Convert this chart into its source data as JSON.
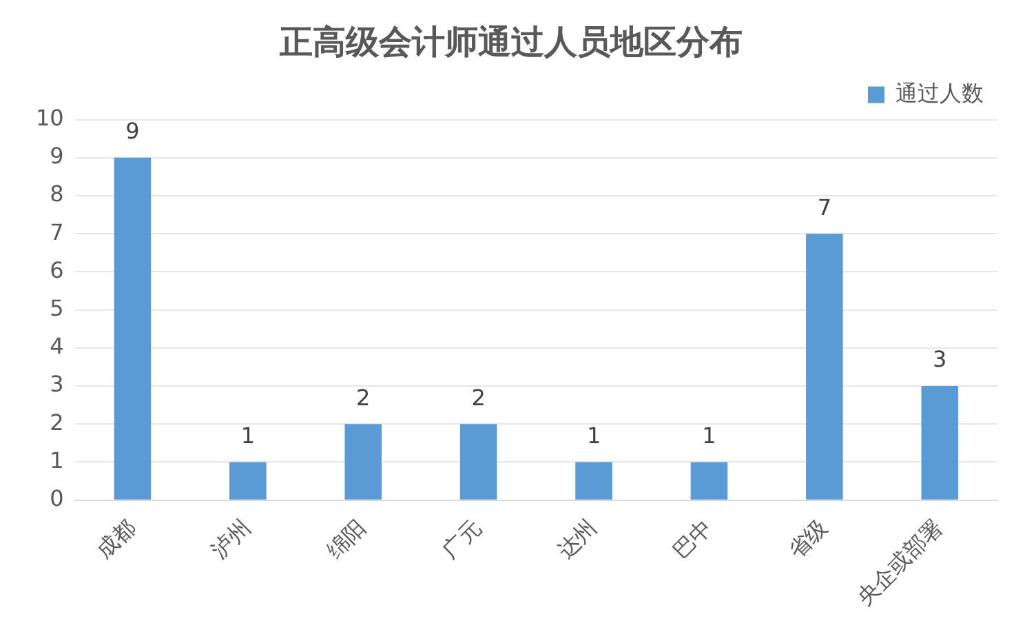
{
  "chart_data": {
    "type": "bar",
    "title": "正高级会计师通过人员地区分布",
    "categories": [
      "成都",
      "泸州",
      "绵阳",
      "广元",
      "达州",
      "巴中",
      "省级",
      "央企或部署"
    ],
    "series": [
      {
        "name": "通过人数",
        "color": "#5b9bd5",
        "values": [
          9,
          1,
          2,
          2,
          1,
          1,
          7,
          3
        ]
      }
    ],
    "ylim": [
      0,
      10
    ],
    "yticks": [
      0,
      1,
      2,
      3,
      4,
      5,
      6,
      7,
      8,
      9,
      10
    ],
    "grid": "y",
    "legend": "top right",
    "data_labels": true
  }
}
